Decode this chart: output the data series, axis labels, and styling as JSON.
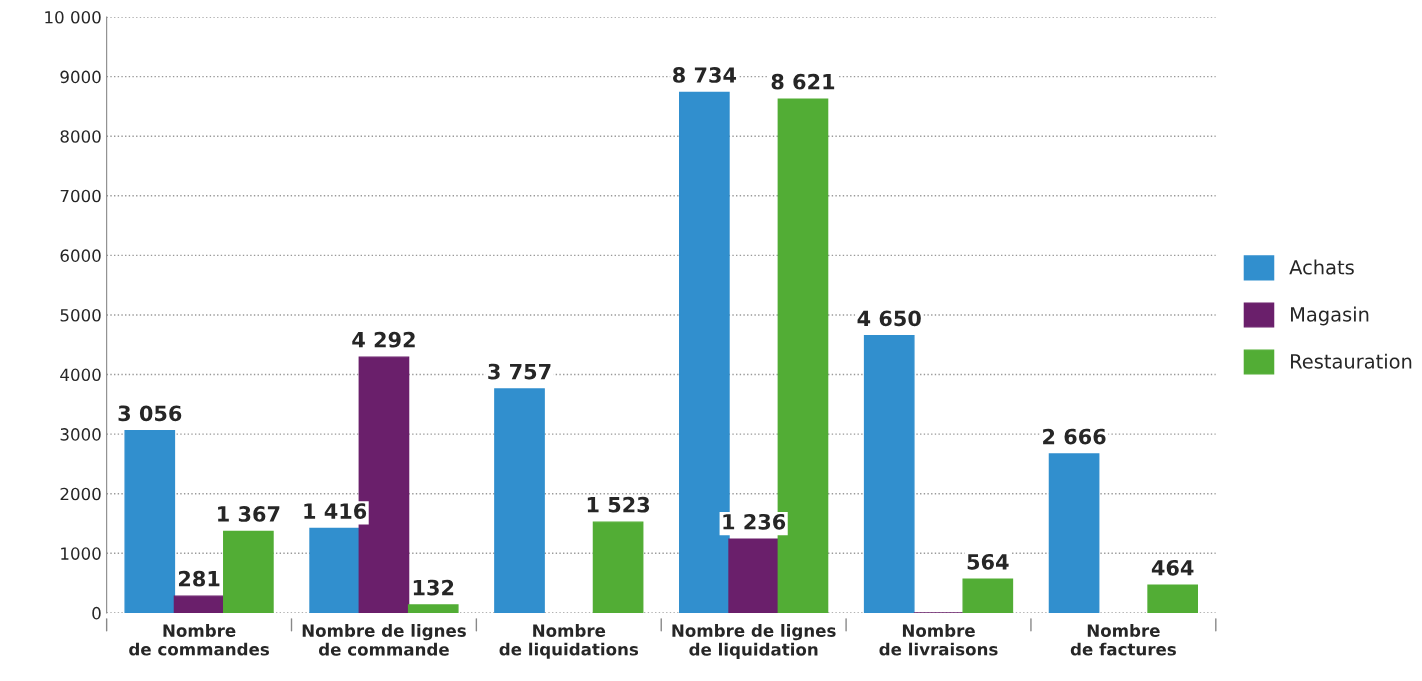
{
  "chart_data": {
    "type": "bar",
    "categories": [
      "Nombre\nde commandes",
      "Nombre de lignes\nde commande",
      "Nombre\nde liquidations",
      "Nombre de lignes\nde liquidation",
      "Nombre\nde livraisons",
      "Nombre\nde factures"
    ],
    "series": [
      {
        "name": "Achats",
        "color": "#318fce",
        "values": [
          3056,
          1416,
          3757,
          8734,
          4650,
          2666
        ],
        "value_labels": [
          "3 056",
          "1 416",
          "3 757",
          "8 734",
          "4 650",
          "2 666"
        ]
      },
      {
        "name": "Magasin",
        "color": "#6a1f6b",
        "values": [
          281,
          4292,
          null,
          1236,
          0,
          null
        ],
        "value_labels": [
          "281",
          "4 292",
          null,
          "1 236",
          null,
          null
        ]
      },
      {
        "name": "Restauration",
        "color": "#52ad35",
        "values": [
          1367,
          132,
          1523,
          8621,
          564,
          464
        ],
        "value_labels": [
          "1 367",
          "132",
          "1 523",
          "8 621",
          "564",
          "464"
        ]
      }
    ],
    "ylim": [
      0,
      10000
    ],
    "yticks": [
      0,
      1000,
      2000,
      3000,
      4000,
      5000,
      6000,
      7000,
      8000,
      9000,
      {
        "value": 10000,
        "label": "10 000"
      }
    ],
    "grid": "y",
    "legend": "right"
  }
}
